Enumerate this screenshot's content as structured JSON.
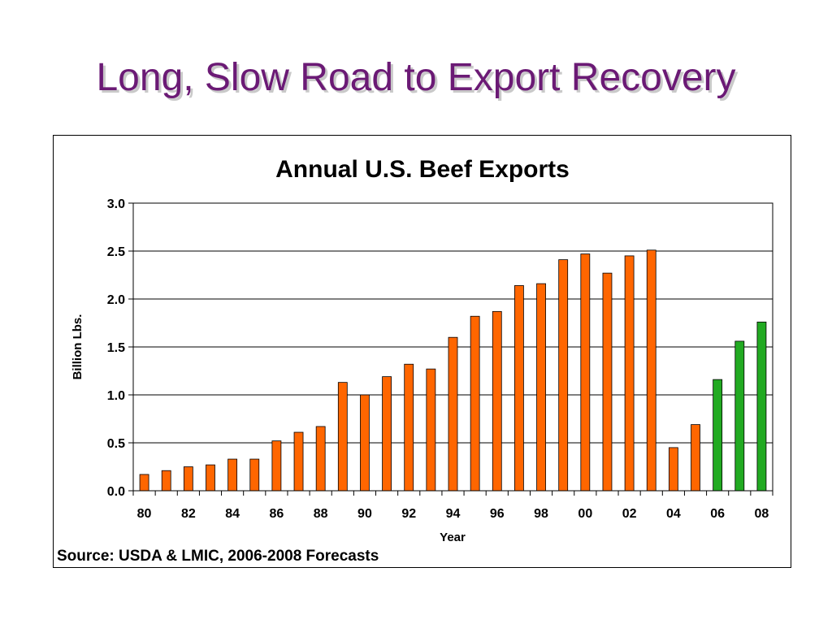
{
  "slide": {
    "title": "Long, Slow Road to Export Recovery"
  },
  "chart_data": {
    "type": "bar",
    "title": "Annual U.S. Beef Exports",
    "xlabel": "Year",
    "ylabel": "Billion Lbs.",
    "ylim": [
      0,
      3.0
    ],
    "yticks": [
      "0.0",
      "0.5",
      "1.0",
      "1.5",
      "2.0",
      "2.5",
      "3.0"
    ],
    "xtick_labels": [
      "80",
      "82",
      "84",
      "86",
      "88",
      "90",
      "92",
      "94",
      "96",
      "98",
      "00",
      "02",
      "04",
      "06",
      "08"
    ],
    "grid": "horizontal",
    "source": "Source: USDA & LMIC, 2006-2008 Forecasts",
    "colors": {
      "actual": "#ff6600",
      "forecast": "#22aa22"
    },
    "categories": [
      "1980",
      "1981",
      "1982",
      "1983",
      "1984",
      "1985",
      "1986",
      "1987",
      "1988",
      "1989",
      "1990",
      "1991",
      "1992",
      "1993",
      "1994",
      "1995",
      "1996",
      "1997",
      "1998",
      "1999",
      "2000",
      "2001",
      "2002",
      "2003",
      "2004",
      "2005",
      "2006",
      "2007",
      "2008"
    ],
    "values": [
      0.17,
      0.21,
      0.25,
      0.27,
      0.33,
      0.33,
      0.52,
      0.61,
      0.67,
      1.13,
      1.0,
      1.19,
      1.32,
      1.27,
      1.6,
      1.82,
      1.87,
      2.14,
      2.16,
      2.41,
      2.47,
      2.27,
      2.45,
      2.51,
      0.45,
      0.69,
      1.16,
      1.56,
      1.76
    ],
    "forecast": [
      false,
      false,
      false,
      false,
      false,
      false,
      false,
      false,
      false,
      false,
      false,
      false,
      false,
      false,
      false,
      false,
      false,
      false,
      false,
      false,
      false,
      false,
      false,
      false,
      false,
      false,
      true,
      true,
      true
    ]
  }
}
